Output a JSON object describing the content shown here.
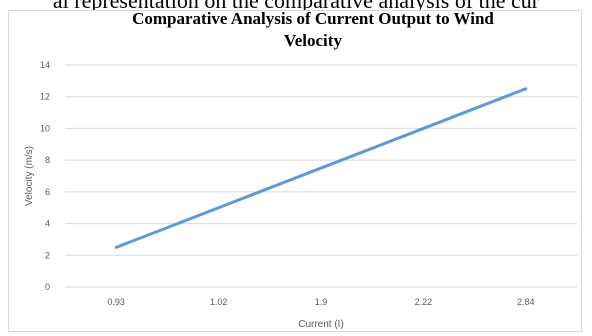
{
  "caption": "al representation on the comparative analysis of the cur",
  "chart_data": {
    "type": "line",
    "title_lines": [
      "Comparative Analysis of Current Output to Wind",
      "Velocity"
    ],
    "xlabel": "Current (I)",
    "ylabel": "Velocity (m/s)",
    "categories": [
      "0.93",
      "1.02",
      "1.9",
      "2.22",
      "2.84"
    ],
    "series": [
      {
        "values": [
          2.5,
          5.0,
          7.5,
          10.0,
          12.5
        ],
        "color": "#5b9bd5"
      }
    ],
    "ylim": [
      0,
      14
    ],
    "yticks": [
      "0",
      "2",
      "4",
      "6",
      "8",
      "10",
      "12",
      "14"
    ],
    "grid": true,
    "legend": "none"
  }
}
